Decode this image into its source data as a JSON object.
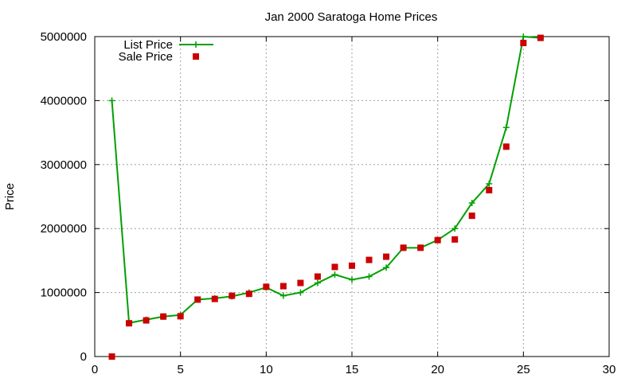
{
  "chart_data": {
    "type": "line",
    "title": "Jan 2000 Saratoga Home Prices",
    "xlabel": "",
    "ylabel": "Price",
    "xlim": [
      0,
      30
    ],
    "ylim": [
      0,
      5000000
    ],
    "grid": true,
    "legend_position": "top-left",
    "x_ticks": [
      0,
      5,
      10,
      15,
      20,
      25,
      30
    ],
    "y_ticks": [
      0,
      1000000,
      2000000,
      3000000,
      4000000,
      5000000
    ],
    "x_tick_labels": [
      "0",
      "5",
      "10",
      "15",
      "20",
      "25",
      "30"
    ],
    "y_tick_labels": [
      "0",
      "1000000",
      "2000000",
      "3000000",
      "4000000",
      "5000000"
    ],
    "series": [
      {
        "name": "List Price",
        "style": "linespoints",
        "color": "#00a000",
        "x": [
          1,
          2,
          3,
          4,
          5,
          6,
          7,
          8,
          9,
          10,
          11,
          12,
          13,
          14,
          15,
          16,
          17,
          18,
          19,
          20,
          21,
          22,
          23,
          24,
          25,
          26
        ],
        "y": [
          4000000,
          525000,
          575000,
          625000,
          650000,
          890000,
          910000,
          940000,
          1000000,
          1080000,
          950000,
          1000000,
          1150000,
          1280000,
          1200000,
          1250000,
          1390000,
          1700000,
          1700000,
          1820000,
          2000000,
          2400000,
          2700000,
          3580000,
          5000000,
          4980000
        ]
      },
      {
        "name": "Sale Price",
        "style": "points",
        "color": "#cc0000",
        "x": [
          1,
          2,
          3,
          4,
          5,
          6,
          7,
          8,
          9,
          10,
          11,
          12,
          13,
          14,
          15,
          16,
          17,
          18,
          19,
          20,
          21,
          22,
          23,
          24,
          25,
          26
        ],
        "y": [
          0,
          520000,
          565000,
          625000,
          630000,
          890000,
          900000,
          950000,
          980000,
          1090000,
          1100000,
          1150000,
          1250000,
          1400000,
          1420000,
          1510000,
          1560000,
          1700000,
          1700000,
          1820000,
          1830000,
          2200000,
          2600000,
          3280000,
          4900000,
          4980000
        ]
      }
    ]
  }
}
